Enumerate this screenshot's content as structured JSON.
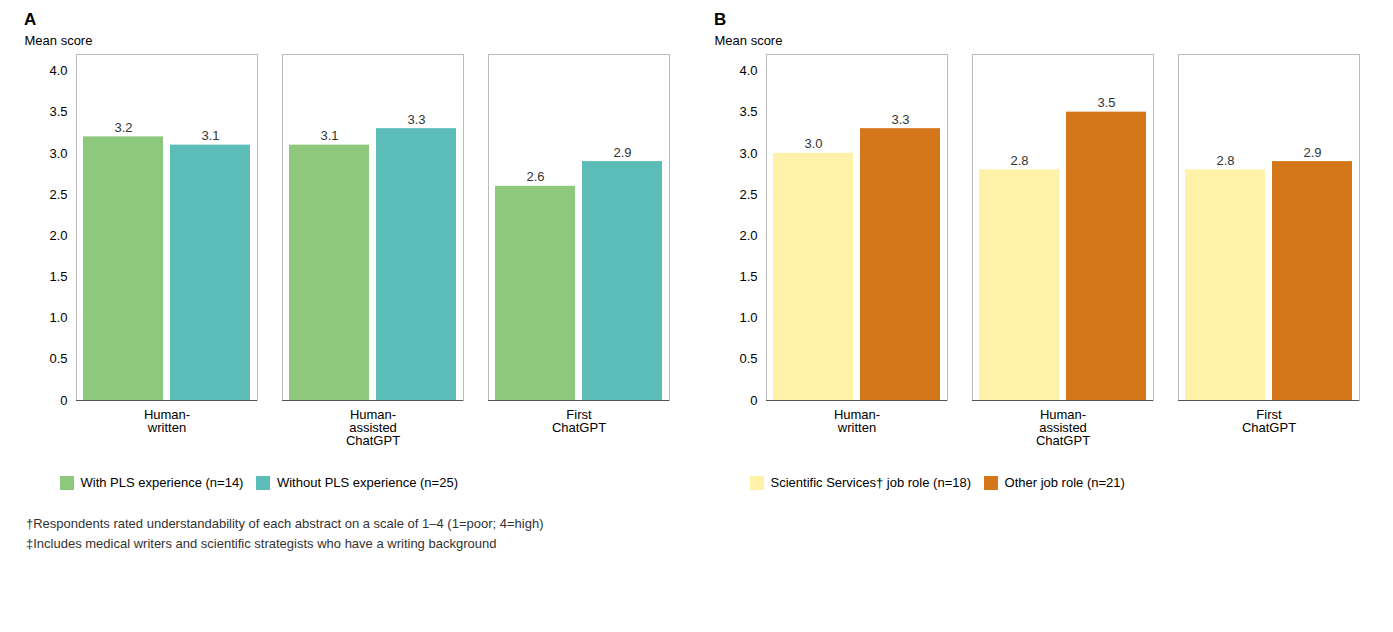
{
  "chart_data": [
    {
      "type": "bar",
      "title": "A",
      "categories": [
        "Human-\nwritten",
        "Human-\nassisted\nChatGPT",
        "First\nChatGPT"
      ],
      "series": [
        {
          "name": "With PLS experience (n=14)",
          "color": "#8DC87C",
          "values": [
            3.2,
            3.1,
            2.6
          ]
        },
        {
          "name": "Without PLS experience (n=25)",
          "color": "#5BBCB8",
          "values": [
            3.1,
            3.3,
            2.9
          ]
        }
      ],
      "ylabel": "Mean score",
      "ylim": [
        0,
        4.2
      ],
      "yticks": [
        0,
        0.5,
        {
          "value": 1.0,
          "label": "1.0"
        },
        1.5,
        {
          "value": 2.0,
          "label": "2.0"
        },
        2.5,
        {
          "value": 3.0,
          "label": "3.0"
        },
        3.5,
        {
          "value": 4.0,
          "label": "4.0"
        }
      ],
      "grid": false,
      "legend": "bottom",
      "data_labels": true,
      "annotations": [
        "†Respondents rated understandability of each abstract on a scale of 1–4 (1=poor; 4=high)",
        "‡Includes medical writers and scientific strategists who have a writing background"
      ]
    },
    {
      "type": "bar",
      "title": "B",
      "categories": [
        "Human-\nwritten",
        "Human-\nassisted\nChatGPT",
        "First\nChatGPT"
      ],
      "series": [
        {
          "name": "Scientific Services† job role (n=18)",
          "color": "#FFF2A8",
          "values": [
            3.0,
            2.8,
            2.8
          ],
          "value_labels": [
            "3.0",
            "2.8",
            "2.8"
          ]
        },
        {
          "name": "Other job role (n=21)",
          "color": "#D4771A",
          "values": [
            3.3,
            3.5,
            2.9
          ]
        }
      ],
      "ylabel": "Mean score",
      "ylim": [
        0,
        4.2
      ],
      "yticks": [
        0,
        0.5,
        {
          "value": 1.0,
          "label": "1.0"
        },
        1.5,
        {
          "value": 2.0,
          "label": "2.0"
        },
        2.5,
        {
          "value": 3.0,
          "label": "3.0"
        },
        3.5,
        {
          "value": 4.0,
          "label": "4.0"
        }
      ],
      "grid": false,
      "legend": "bottom",
      "data_labels": true
    }
  ]
}
